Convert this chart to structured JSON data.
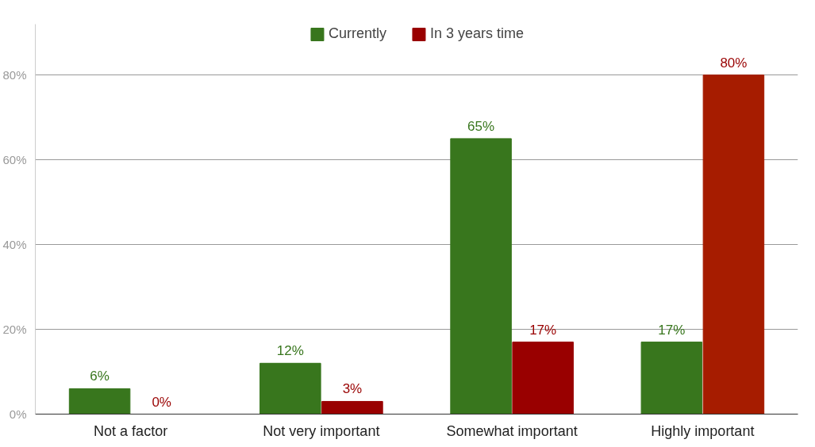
{
  "chart_data": {
    "type": "bar",
    "categories": [
      "Not a factor",
      "Not very important",
      "Somewhat important",
      "Highly important"
    ],
    "series": [
      {
        "name": "Currently",
        "color": "#38761d",
        "values": [
          6,
          12,
          65,
          17
        ],
        "value_labels": [
          "6%",
          "12%",
          "65%",
          "17%"
        ]
      },
      {
        "name": "In 3 years time",
        "color": "#990000",
        "colors": [
          "#990000",
          "#990000",
          "#990000",
          "#a61c00"
        ],
        "values": [
          0,
          3,
          17,
          80
        ],
        "value_labels": [
          "0%",
          "3%",
          "17%",
          "80%"
        ]
      }
    ],
    "ylim": [
      0,
      92
    ],
    "yticks": [
      {
        "value": 0,
        "label": "0%"
      },
      {
        "value": 20,
        "label": "20%"
      },
      {
        "value": 40,
        "label": "40%"
      },
      {
        "value": 60,
        "label": "60%"
      },
      {
        "value": 80,
        "label": "80%"
      }
    ],
    "grid": "y",
    "legend": "top"
  }
}
